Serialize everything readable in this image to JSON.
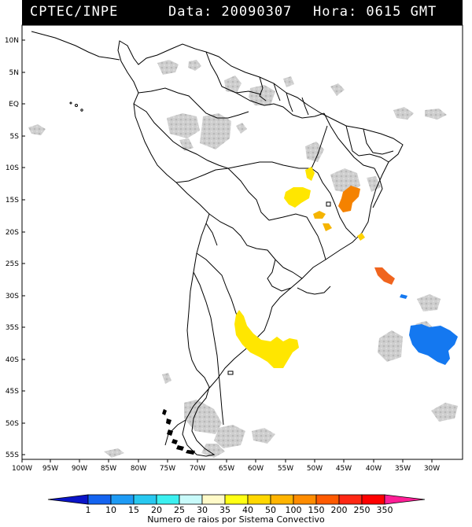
{
  "header": {
    "source": "CPTEC/INPE",
    "date_text": "Data: 20090307",
    "time_text": "Hora: 0615 GMT"
  },
  "axes": {
    "lat_labels": [
      "10N",
      "5N",
      "EQ",
      "5S",
      "10S",
      "15S",
      "20S",
      "25S",
      "30S",
      "35S",
      "40S",
      "45S",
      "50S",
      "55S"
    ],
    "lon_labels": [
      "100W",
      "95W",
      "90W",
      "85W",
      "80W",
      "75W",
      "70W",
      "65W",
      "60W",
      "55W",
      "50W",
      "45W",
      "40W",
      "35W",
      "30W"
    ]
  },
  "colorbar": {
    "title": "Numero de raios por Sistema Convectivo",
    "labels": [
      "1",
      "10",
      "15",
      "20",
      "25",
      "30",
      "35",
      "40",
      "50",
      "100",
      "150",
      "200",
      "250",
      "350"
    ],
    "colors": [
      "#0a14c8",
      "#1464f0",
      "#1e9bf5",
      "#28c8f0",
      "#3cf0f0",
      "#c8fafa",
      "#fffac8",
      "#ffff14",
      "#ffd700",
      "#ffb400",
      "#ff8c00",
      "#ff5a00",
      "#ff2814",
      "#ff0000",
      "#ff1e96"
    ]
  },
  "colors": {
    "cloud": "#c8c8c8",
    "storm_yellow": "#ffe600",
    "storm_gold": "#f5b400",
    "storm_orange": "#f58200",
    "storm_deep_orange": "#f0641e",
    "storm_blue": "#1478f0"
  }
}
